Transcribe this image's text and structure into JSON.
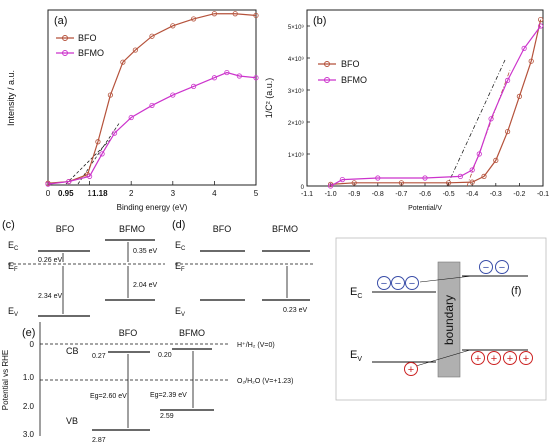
{
  "colors": {
    "bfo": "#b5523b",
    "bfmo": "#cc33cc",
    "electron": "#3a4ea8",
    "hole": "#cc2222",
    "boundary": "#b0b0b0"
  },
  "chart_data": [
    {
      "panel": "(a)",
      "type": "line",
      "xlabel": "Binding energy (eV)",
      "ylabel": "Intensity / a.u.",
      "xlim": [
        0,
        5
      ],
      "xticks": [
        "0",
        "1",
        "2",
        "3",
        "4",
        "5"
      ],
      "extra_ticks": [
        "0.95",
        "1.18"
      ],
      "legend": "top-left",
      "series": [
        {
          "name": "BFO",
          "x": [
            0,
            0.5,
            0.95,
            1.2,
            1.5,
            1.8,
            2.1,
            2.5,
            3.0,
            3.5,
            4.0,
            4.5,
            5.0
          ],
          "y": [
            0.1,
            0.2,
            0.6,
            2.5,
            5.2,
            7.1,
            7.8,
            8.6,
            9.2,
            9.6,
            9.9,
            9.9,
            9.8
          ]
        },
        {
          "name": "BFMO",
          "x": [
            0,
            0.5,
            1.0,
            1.3,
            1.6,
            2.0,
            2.5,
            3.0,
            3.5,
            4.0,
            4.3,
            4.6,
            5.0
          ],
          "y": [
            0.05,
            0.2,
            0.5,
            1.8,
            3.0,
            3.9,
            4.6,
            5.2,
            5.7,
            6.2,
            6.5,
            6.3,
            6.2
          ]
        }
      ]
    },
    {
      "panel": "(b)",
      "type": "line",
      "xlabel": "Potential/V",
      "ylabel": "1/C² (a.u.)",
      "xlim": [
        -1.1,
        -0.1
      ],
      "xticks": [
        "-1.0",
        "-0.9",
        "-0.8",
        "-0.7",
        "-0.6",
        "-0.5",
        "-0.4",
        "-0.3",
        "-0.2",
        "-0.1"
      ],
      "yticks": [
        "0",
        "1×10⁹",
        "2×10⁹",
        "3×10⁹",
        "4×10⁹",
        "5×10⁹"
      ],
      "ylim": [
        0,
        5.5
      ],
      "legend": "top-left",
      "series": [
        {
          "name": "BFO",
          "x": [
            -1.0,
            -0.9,
            -0.7,
            -0.5,
            -0.4,
            -0.35,
            -0.3,
            -0.25,
            -0.2,
            -0.15,
            -0.11
          ],
          "y": [
            0.05,
            0.1,
            0.1,
            0.1,
            0.12,
            0.3,
            0.8,
            1.7,
            2.8,
            3.9,
            5.2
          ]
        },
        {
          "name": "BFMO",
          "x": [
            -1.0,
            -0.95,
            -0.8,
            -0.6,
            -0.45,
            -0.4,
            -0.37,
            -0.32,
            -0.25,
            -0.18,
            -0.11
          ],
          "y": [
            0.0,
            0.2,
            0.25,
            0.25,
            0.3,
            0.5,
            1.0,
            2.1,
            3.3,
            4.3,
            5.0
          ]
        }
      ]
    }
  ],
  "panel_c": {
    "label": "(c)",
    "col1": "BFO",
    "col2": "BFMO",
    "ec": "E",
    "ec_sub": "C",
    "ef": "E",
    "ef_sub": "F",
    "ev": "E",
    "ev_sub": "V",
    "v1": "0.26 eV",
    "v2": "2.34 eV",
    "v3": "0.35 eV",
    "v4": "2.04 eV"
  },
  "panel_d": {
    "label": "(d)",
    "col1": "BFO",
    "col2": "BFMO",
    "ec": "E",
    "ec_sub": "C",
    "ef": "E",
    "ef_sub": "F",
    "ev": "E",
    "ev_sub": "V",
    "v1": "0.23 eV"
  },
  "panel_e": {
    "label": "(e)",
    "col1": "BFO",
    "col2": "BFMO",
    "ylabel": "Potential vs RHE",
    "yticks": [
      "0",
      "1.0",
      "2.0",
      "3.0"
    ],
    "cb": "CB",
    "vb": "VB",
    "h_label": "H⁺/H₂ (V=0)",
    "o_label": "O₂/H₂O (V=+1.23)",
    "bfo_cb": "0.27",
    "bfmo_cb": "0.20",
    "bfo_eg": "Eg=2.60 eV",
    "bfmo_eg": "Eg=2.39 eV",
    "bfo_vb": "2.87",
    "bfmo_vb": "2.59"
  },
  "panel_f": {
    "label": "(f)",
    "ec": "E",
    "ec_sub": "C",
    "ev": "E",
    "ev_sub": "V",
    "boundary": "boundary",
    "minus": "−",
    "plus": "+"
  }
}
